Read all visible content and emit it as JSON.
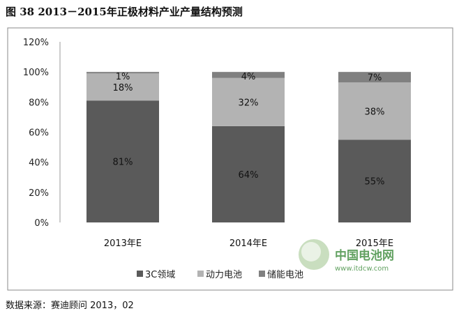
{
  "title": "图 38 2013－2015年正极材料产业产量结构预测",
  "source": "数据来源：赛迪顾问   2013，02",
  "watermark": {
    "name": "中国电池网",
    "url": "www.itdcw.com"
  },
  "chart_data": {
    "type": "bar",
    "stacked": true,
    "title": "",
    "xlabel": "",
    "ylabel": "",
    "categories": [
      "2013年E",
      "2014年E",
      "2015年E"
    ],
    "ylim": [
      0,
      120
    ],
    "yticks": [
      "0%",
      "20%",
      "40%",
      "60%",
      "80%",
      "100%",
      "120%"
    ],
    "grid": false,
    "legend": "bottom",
    "series": [
      {
        "name": "3C领域",
        "values": [
          81,
          64,
          55
        ],
        "labels": [
          "81%",
          "64%",
          "55%"
        ],
        "color": "#5a5a5a"
      },
      {
        "name": "动力电池",
        "values": [
          18,
          32,
          38
        ],
        "labels": [
          "18%",
          "32%",
          "38%"
        ],
        "color": "#b3b3b3"
      },
      {
        "name": "储能电池",
        "values": [
          1,
          4,
          7
        ],
        "labels": [
          "1%",
          "4%",
          "7%"
        ],
        "color": "#808080"
      }
    ]
  }
}
